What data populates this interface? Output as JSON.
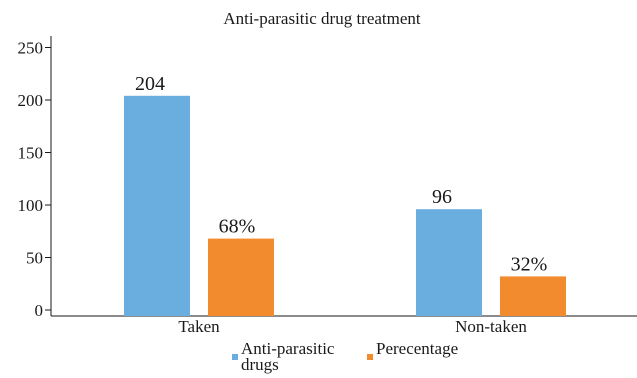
{
  "chart_data": {
    "type": "bar",
    "title": "Anti-parasitic drug treatment",
    "categories": [
      "Taken",
      "Non-taken"
    ],
    "series": [
      {
        "name": "Anti-parasitic drugs",
        "values": [
          204,
          96
        ],
        "labels": [
          "204",
          "96"
        ],
        "color": "#6aaedf"
      },
      {
        "name": "Perecentage",
        "values": [
          68,
          32
        ],
        "labels": [
          "68%",
          "32%"
        ],
        "color": "#f28a2e"
      }
    ],
    "yticks": [
      "0",
      "50",
      "100",
      "150",
      "200",
      "250"
    ],
    "ylim": [
      0,
      250
    ],
    "grid": false,
    "legend": "bottom"
  }
}
